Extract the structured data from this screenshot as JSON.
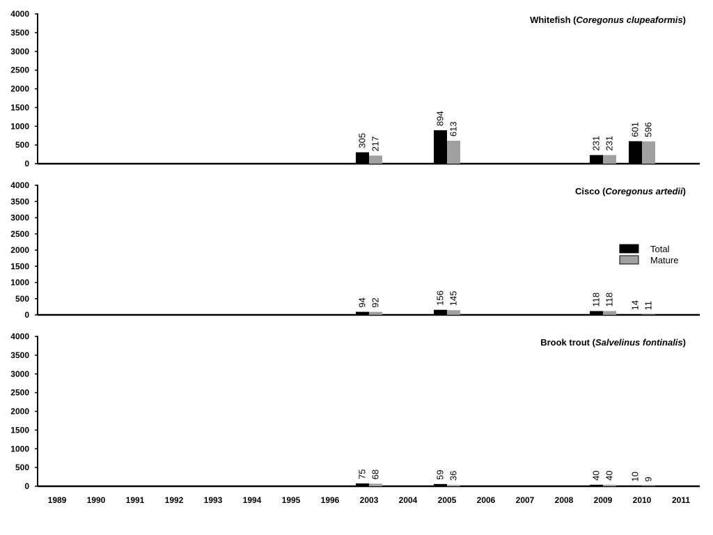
{
  "chart_data": {
    "type": "bar",
    "categories": [
      "1989",
      "1990",
      "1991",
      "1992",
      "1993",
      "1994",
      "1995",
      "1996",
      "2003",
      "2004",
      "2005",
      "2006",
      "2007",
      "2008",
      "2009",
      "2010",
      "2011"
    ],
    "legend": {
      "placement": "right",
      "entries": [
        {
          "name": "Total",
          "color": "#000000"
        },
        {
          "name": "Mature",
          "color": "#a0a0a0"
        }
      ]
    },
    "panels": [
      {
        "title_common": "Whitefish",
        "title_latin": "Coregonus clupeaformis",
        "ylim": [
          0,
          4000
        ],
        "yticks": [
          0,
          500,
          1000,
          1500,
          2000,
          2500,
          3000,
          3500,
          4000
        ],
        "series": [
          {
            "name": "Total",
            "values": [
              null,
              null,
              null,
              null,
              null,
              null,
              null,
              null,
              305,
              null,
              894,
              null,
              null,
              null,
              231,
              601,
              null
            ]
          },
          {
            "name": "Mature",
            "values": [
              null,
              null,
              null,
              null,
              null,
              null,
              null,
              null,
              217,
              null,
              613,
              null,
              null,
              null,
              231,
              596,
              null
            ]
          }
        ]
      },
      {
        "title_common": "Cisco",
        "title_latin": "Coregonus artedii",
        "ylim": [
          0,
          4000
        ],
        "yticks": [
          0,
          500,
          1000,
          1500,
          2000,
          2500,
          3000,
          3500,
          4000
        ],
        "series": [
          {
            "name": "Total",
            "values": [
              null,
              null,
              null,
              null,
              null,
              null,
              null,
              null,
              94,
              null,
              156,
              null,
              null,
              null,
              118,
              14,
              null
            ]
          },
          {
            "name": "Mature",
            "values": [
              null,
              null,
              null,
              null,
              null,
              null,
              null,
              null,
              92,
              null,
              145,
              null,
              null,
              null,
              118,
              11,
              null
            ]
          }
        ]
      },
      {
        "title_common": "Brook trout",
        "title_latin": "Salvelinus fontinalis",
        "ylim": [
          0,
          4000
        ],
        "yticks": [
          0,
          500,
          1000,
          1500,
          2000,
          2500,
          3000,
          3500,
          4000
        ],
        "series": [
          {
            "name": "Total",
            "values": [
              null,
              null,
              null,
              null,
              null,
              null,
              null,
              null,
              75,
              null,
              59,
              null,
              null,
              null,
              40,
              10,
              null
            ]
          },
          {
            "name": "Mature",
            "values": [
              null,
              null,
              null,
              null,
              null,
              null,
              null,
              null,
              68,
              null,
              36,
              null,
              null,
              null,
              40,
              9,
              null
            ]
          }
        ]
      }
    ]
  }
}
